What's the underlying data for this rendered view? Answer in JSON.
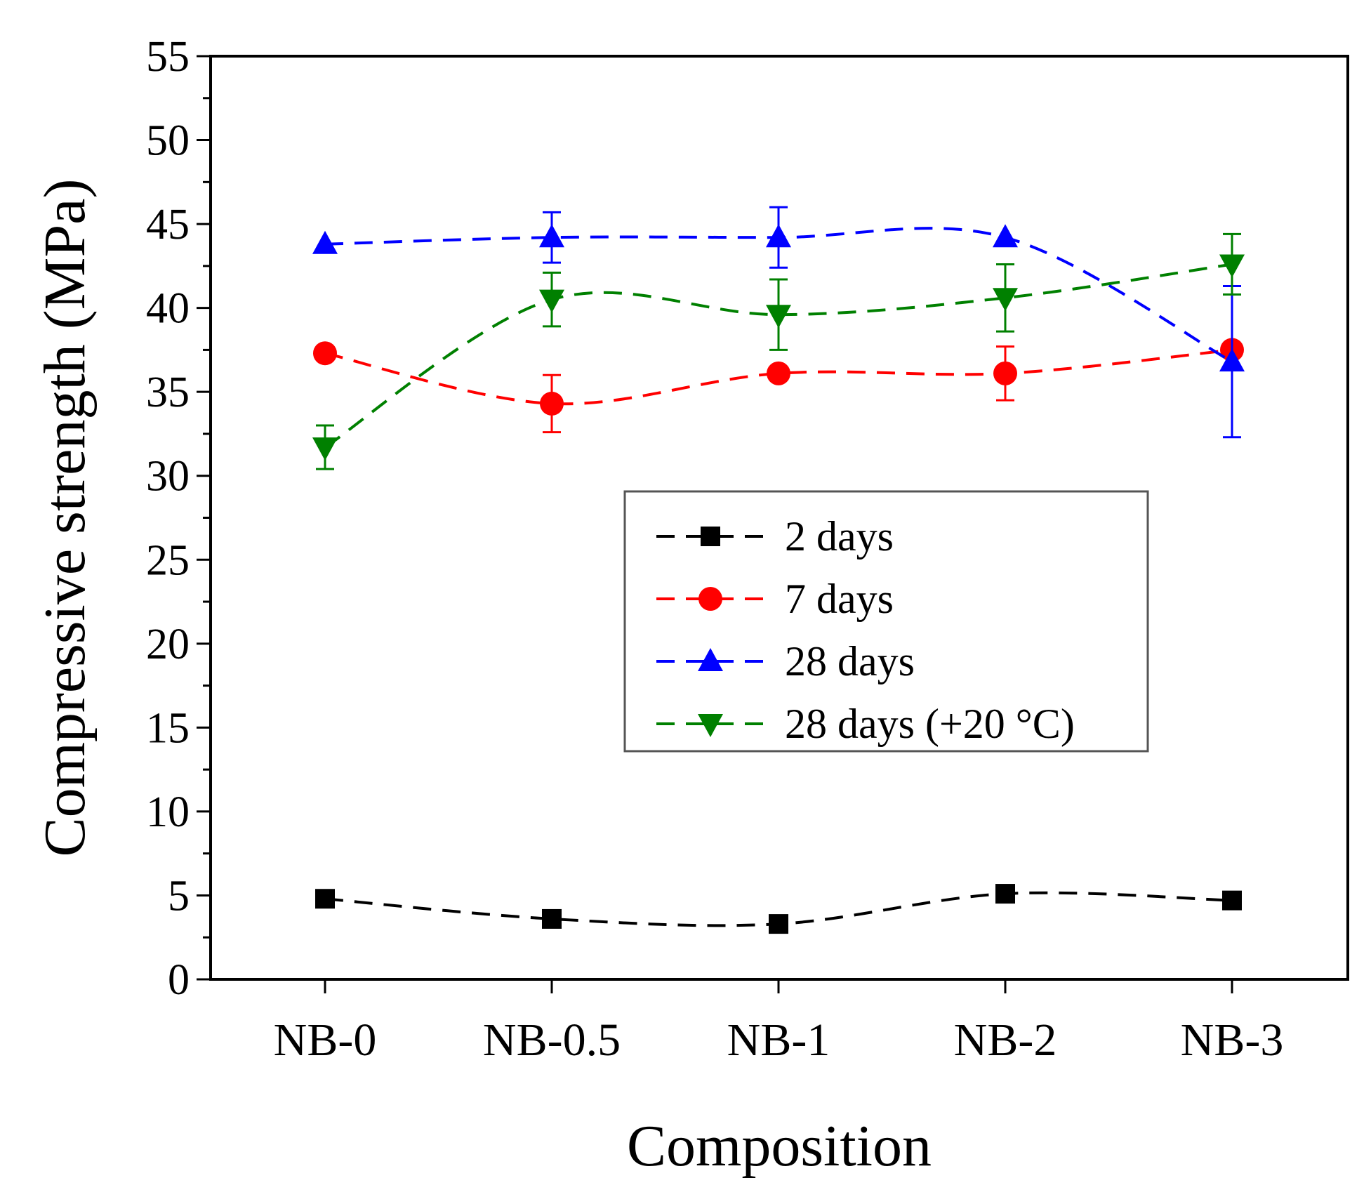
{
  "chart_data": {
    "type": "line",
    "title": "",
    "xlabel": "Composition",
    "ylabel": "Compressive strength (MPa)",
    "categories": [
      "NB-0",
      "NB-0.5",
      "NB-1",
      "NB-2",
      "NB-3"
    ],
    "ylim": [
      0,
      55
    ],
    "yticks": [
      "0",
      "5",
      "10",
      "15",
      "20",
      "25",
      "30",
      "35",
      "40",
      "45",
      "50",
      "55"
    ],
    "grid": false,
    "legend_position": "center-right",
    "series": [
      {
        "name": "2 days",
        "color": "#000000",
        "marker": "square",
        "values": [
          4.8,
          3.6,
          3.3,
          5.1,
          4.7
        ],
        "errors": [
          0,
          0,
          0,
          0,
          0
        ]
      },
      {
        "name": "7 days",
        "color": "#ff0000",
        "marker": "circle",
        "values": [
          37.3,
          34.3,
          36.1,
          36.1,
          37.5
        ],
        "errors": [
          0,
          1.7,
          0,
          1.6,
          0
        ]
      },
      {
        "name": "28 days",
        "color": "#0000ff",
        "marker": "triangle-up",
        "values": [
          43.8,
          44.2,
          44.2,
          44.2,
          36.8
        ],
        "errors": [
          0,
          1.5,
          1.8,
          0,
          4.5
        ]
      },
      {
        "name": "28 days (+20 °C)",
        "color": "#008000",
        "marker": "triangle-down",
        "values": [
          31.7,
          40.5,
          39.6,
          40.6,
          42.6
        ],
        "errors": [
          1.3,
          1.6,
          2.1,
          2.0,
          1.8
        ]
      }
    ]
  }
}
